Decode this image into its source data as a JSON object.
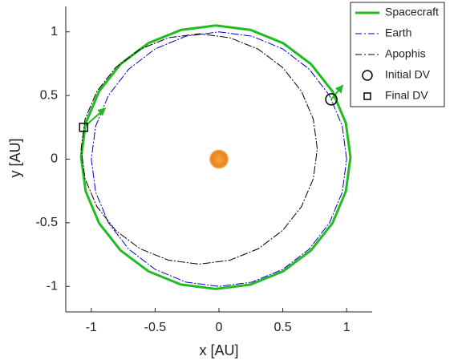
{
  "chart_data": {
    "type": "orbit",
    "x_label": "x [AU]",
    "y_label": "y [AU]",
    "xlim": [
      -1.2,
      1.2
    ],
    "ylim": [
      -1.2,
      1.2
    ],
    "xticks": [
      -1,
      -0.5,
      0,
      0.5,
      1
    ],
    "yticks": [
      -1,
      -0.5,
      0,
      0.5,
      1
    ],
    "grid": false,
    "legend": "top-right",
    "series": [
      {
        "name": "Spacecraft",
        "color": "#22bb22",
        "style": "line",
        "width": 3,
        "x": [
          1.03,
          0.994,
          0.889,
          0.721,
          0.503,
          0.248,
          -0.025,
          -0.298,
          -0.553,
          -0.771,
          -0.939,
          -1.044,
          -1.08,
          -1.044,
          -0.939,
          -0.771,
          -0.553,
          -0.298,
          -0.025,
          0.248,
          0.503,
          0.721,
          0.889,
          0.994
        ],
        "y": [
          0.015,
          0.283,
          0.533,
          0.747,
          0.911,
          1.015,
          1.05,
          1.015,
          0.911,
          0.747,
          0.533,
          0.283,
          0.015,
          -0.253,
          -0.503,
          -0.717,
          -0.881,
          -0.985,
          -1.02,
          -0.985,
          -0.881,
          -0.717,
          -0.503,
          -0.253
        ]
      },
      {
        "name": "Earth",
        "color": "#0000cc",
        "style": "dashdot",
        "width": 1,
        "x": [
          1,
          0.966,
          0.866,
          0.707,
          0.5,
          0.259,
          0,
          -0.259,
          -0.5,
          -0.707,
          -0.866,
          -0.966,
          -1,
          -0.966,
          -0.866,
          -0.707,
          -0.5,
          -0.259,
          0,
          0.259,
          0.5,
          0.707,
          0.866,
          0.966
        ],
        "y": [
          0,
          0.259,
          0.5,
          0.707,
          0.866,
          0.966,
          1,
          0.966,
          0.866,
          0.707,
          0.5,
          0.259,
          0,
          -0.259,
          -0.5,
          -0.707,
          -0.866,
          -0.966,
          -1,
          -0.966,
          -0.866,
          -0.707,
          -0.5,
          -0.259
        ]
      },
      {
        "name": "Apophis",
        "color": "#000000",
        "style": "dashdot",
        "width": 1,
        "x": [
          0.77,
          0.739,
          0.646,
          0.499,
          0.308,
          0.085,
          -0.155,
          -0.395,
          -0.618,
          -0.809,
          -0.956,
          -1.049,
          -1.08,
          -1.049,
          -0.956,
          -0.809,
          -0.618,
          -0.395,
          -0.155,
          0.085,
          0.308,
          0.499,
          0.646,
          0.739
        ],
        "y": [
          0.08,
          0.314,
          0.533,
          0.72,
          0.864,
          0.954,
          0.985,
          0.954,
          0.864,
          0.72,
          0.533,
          0.314,
          0.08,
          -0.154,
          -0.373,
          -0.56,
          -0.704,
          -0.794,
          -0.825,
          -0.794,
          -0.704,
          -0.56,
          -0.373,
          -0.154
        ]
      },
      {
        "name": "Initial DV",
        "color": "#000000",
        "style": "circle",
        "arrow_color": "#22bb22",
        "x": [
          0.88
        ],
        "y": [
          0.47
        ],
        "u": [
          0.09
        ],
        "v": [
          0.11
        ]
      },
      {
        "name": "Final DV",
        "color": "#000000",
        "style": "square",
        "arrow_color": "#22bb22",
        "x": [
          -1.06
        ],
        "y": [
          0.25
        ],
        "u": [
          0.17
        ],
        "v": [
          0.15
        ]
      }
    ]
  }
}
